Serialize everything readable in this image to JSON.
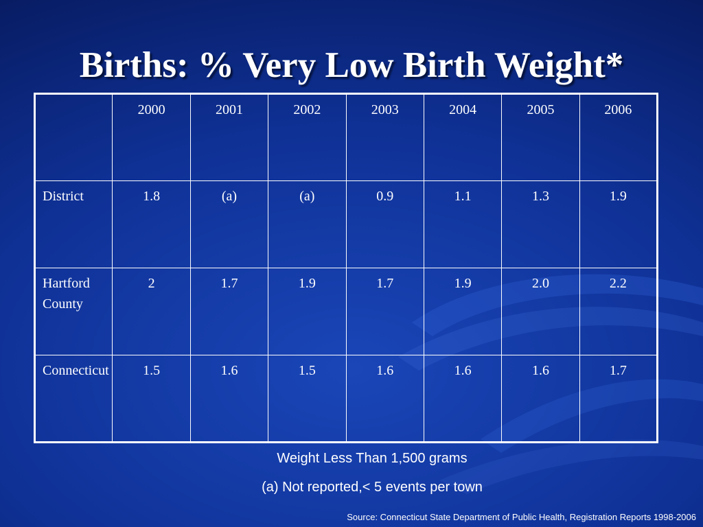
{
  "slide": {
    "title": "Births: % Very Low Birth Weight*",
    "table": {
      "columns": [
        "",
        "2000",
        "2001",
        "2002",
        "2003",
        "2004",
        "2005",
        "2006"
      ],
      "rows": [
        {
          "label": "District",
          "values": [
            "1.8",
            "(a)",
            "(a)",
            "0.9",
            "1.1",
            "1.3",
            "1.9"
          ]
        },
        {
          "label": "Hartford County",
          "values": [
            "2",
            "1.7",
            "1.9",
            "1.7",
            "1.9",
            "2.0",
            "2.2"
          ]
        },
        {
          "label": "Connecticut",
          "values": [
            "1.5",
            "1.6",
            "1.5",
            "1.6",
            "1.6",
            "1.6",
            "1.7"
          ]
        }
      ]
    },
    "notes": [
      "Weight Less Than 1,500 grams",
      "(a) Not reported,< 5 events per town"
    ],
    "source": "Source: Connecticut State Department of Public Health, Registration Reports 1998-2006"
  }
}
